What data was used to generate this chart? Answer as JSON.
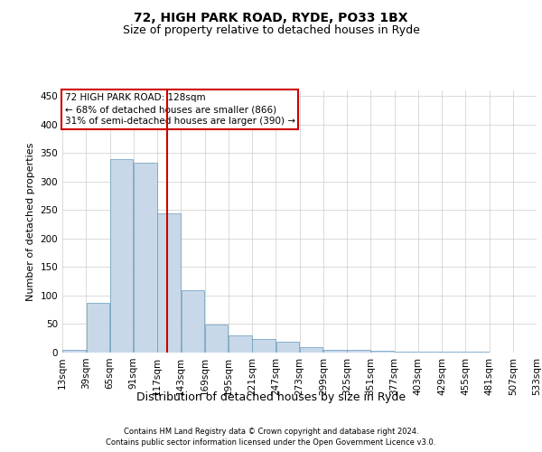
{
  "title1": "72, HIGH PARK ROAD, RYDE, PO33 1BX",
  "title2": "Size of property relative to detached houses in Ryde",
  "xlabel": "Distribution of detached houses by size in Ryde",
  "ylabel": "Number of detached properties",
  "footnote1": "Contains HM Land Registry data © Crown copyright and database right 2024.",
  "footnote2": "Contains public sector information licensed under the Open Government Licence v3.0.",
  "annotation_line1": "72 HIGH PARK ROAD: 128sqm",
  "annotation_line2": "← 68% of detached houses are smaller (866)",
  "annotation_line3": "31% of semi-detached houses are larger (390) →",
  "property_size_sqm": 128,
  "bin_edges": [
    13,
    39,
    65,
    91,
    117,
    143,
    169,
    195,
    221,
    247,
    273,
    299,
    325,
    351,
    377,
    403,
    429,
    455,
    481,
    507,
    533
  ],
  "bin_labels": [
    "13sqm",
    "39sqm",
    "65sqm",
    "91sqm",
    "117sqm",
    "143sqm",
    "169sqm",
    "195sqm",
    "221sqm",
    "247sqm",
    "273sqm",
    "299sqm",
    "325sqm",
    "351sqm",
    "377sqm",
    "403sqm",
    "429sqm",
    "455sqm",
    "481sqm",
    "507sqm",
    "533sqm"
  ],
  "bar_heights": [
    5,
    88,
    340,
    333,
    245,
    110,
    49,
    30,
    24,
    19,
    9,
    5,
    4,
    3,
    2,
    1,
    1,
    1,
    0,
    0,
    0
  ],
  "bar_color": "#c8d8e8",
  "bar_edge_color": "#6699bb",
  "vline_color": "#cc0000",
  "vline_x": 128,
  "ylim": [
    0,
    460
  ],
  "yticks": [
    0,
    50,
    100,
    150,
    200,
    250,
    300,
    350,
    400,
    450
  ],
  "grid_color": "#cccccc",
  "bg_color": "#ffffff",
  "annotation_box_color": "#cc0000",
  "title1_fontsize": 10,
  "title2_fontsize": 9,
  "xlabel_fontsize": 9,
  "ylabel_fontsize": 8,
  "tick_fontsize": 7.5,
  "footnote_fontsize": 6.0,
  "ann_fontsize": 7.5
}
